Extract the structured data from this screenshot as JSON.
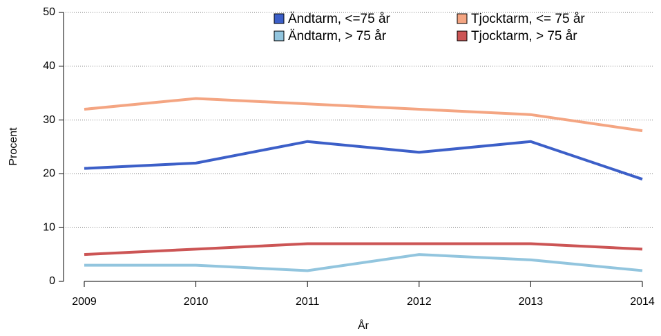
{
  "chart_data": {
    "type": "line",
    "x": [
      2009,
      2010,
      2011,
      2012,
      2013,
      2014
    ],
    "xlim": [
      2009,
      2014
    ],
    "xticks": [
      2009,
      2010,
      2011,
      2012,
      2013,
      2014
    ],
    "ylim": [
      0,
      50
    ],
    "yticks": [
      0,
      10,
      20,
      30,
      40,
      50
    ],
    "xlabel": "År",
    "ylabel": "Procent",
    "grid": true,
    "series": [
      {
        "name": "Ändtarm, <=75 år",
        "color": "#3c5fc8",
        "values": [
          21,
          22,
          26,
          24,
          26,
          19
        ]
      },
      {
        "name": "Ändtarm, > 75 år",
        "color": "#92c5de",
        "values": [
          3,
          3,
          2,
          5,
          4,
          2
        ]
      },
      {
        "name": "Tjocktarm, <= 75 år",
        "color": "#f4a582",
        "values": [
          32,
          34,
          33,
          32,
          31,
          28
        ]
      },
      {
        "name": "Tjocktarm, > 75 år",
        "color": "#cc5555",
        "values": [
          5,
          6,
          7,
          7,
          7,
          6
        ]
      }
    ]
  }
}
